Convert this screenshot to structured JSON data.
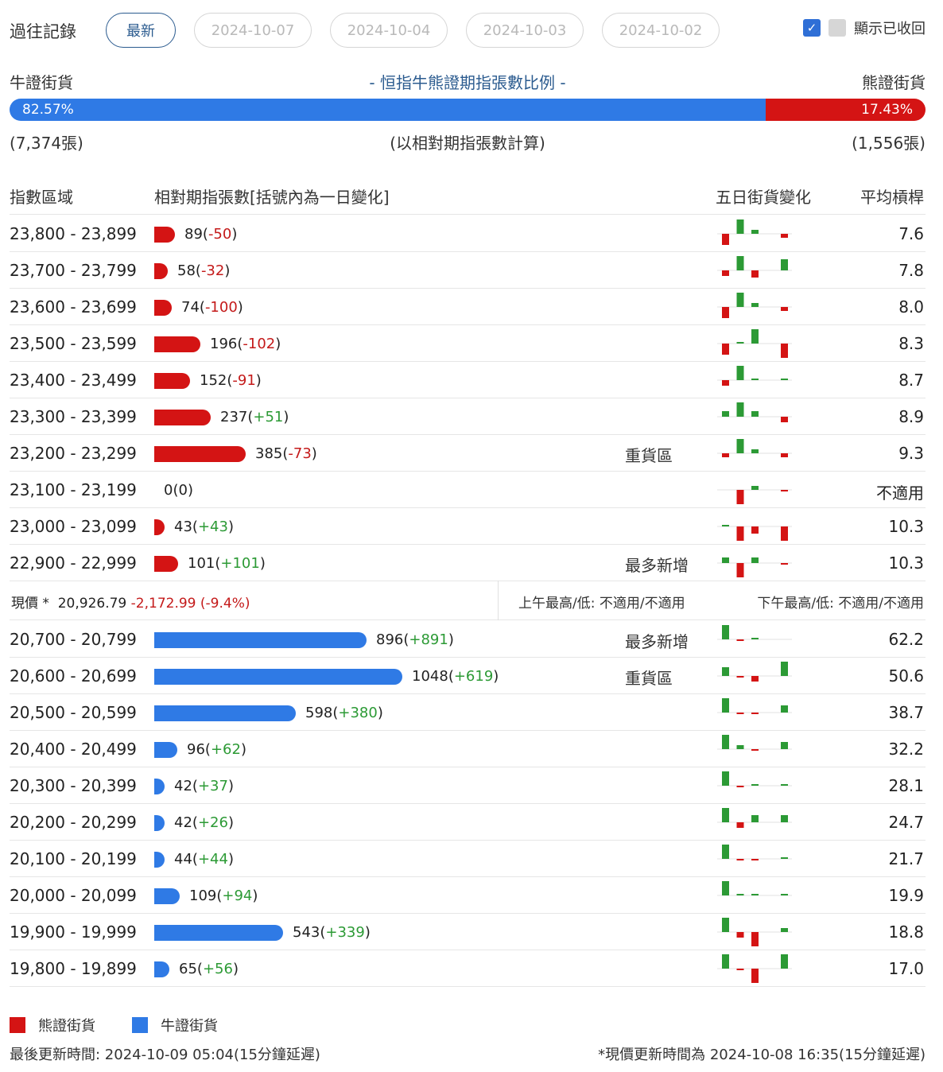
{
  "history": {
    "label": "過往記錄",
    "buttons": [
      "最新",
      "2024-10-07",
      "2024-10-04",
      "2024-10-03",
      "2024-10-02"
    ],
    "active_index": 0,
    "show_recalled_label": "顯示已收回",
    "check_icon": "✓"
  },
  "ratio": {
    "bull_label": "牛證街貨",
    "bear_label": "熊證街貨",
    "title": "- 恒指牛熊證期指張數比例 -",
    "bull_pct": "82.57%",
    "bear_pct": "17.43%",
    "bull_fraction": 0.8257,
    "bull_count": "(7,374張)",
    "bear_count": "(1,556張)",
    "note": "(以相對期指張數計算)"
  },
  "table": {
    "headers": {
      "range": "指數區域",
      "contracts": "相對期指張數[括號內為一日變化]",
      "five_day": "五日街貨變化",
      "leverage": "平均槓桿"
    },
    "max_contracts": 1048,
    "bear_rows": [
      {
        "range": "23,800 - 23,899",
        "count": "89",
        "change": "-50",
        "value": 89,
        "tag": "",
        "leverage": "7.6",
        "spark": [
          -3,
          4,
          1,
          0,
          -1
        ]
      },
      {
        "range": "23,700 - 23,799",
        "count": "58",
        "change": "-32",
        "value": 58,
        "tag": "",
        "leverage": "7.8",
        "spark": [
          -1.5,
          4,
          -2,
          0,
          3
        ]
      },
      {
        "range": "23,600 - 23,699",
        "count": "74",
        "change": "-100",
        "value": 74,
        "tag": "",
        "leverage": "8.0",
        "spark": [
          -3,
          4,
          1,
          0,
          -1
        ]
      },
      {
        "range": "23,500 - 23,599",
        "count": "196",
        "change": "-102",
        "value": 196,
        "tag": "",
        "leverage": "8.3",
        "spark": [
          -3,
          0.5,
          4,
          0,
          -4
        ]
      },
      {
        "range": "23,400 - 23,499",
        "count": "152",
        "change": "-91",
        "value": 152,
        "tag": "",
        "leverage": "8.7",
        "spark": [
          -1.5,
          4,
          0.5,
          0,
          0.5
        ]
      },
      {
        "range": "23,300 - 23,399",
        "count": "237",
        "change": "+51",
        "value": 237,
        "tag": "",
        "leverage": "8.9",
        "spark": [
          1.5,
          4,
          1.5,
          0,
          -1.5
        ]
      },
      {
        "range": "23,200 - 23,299",
        "count": "385",
        "change": "-73",
        "value": 385,
        "tag": "重貨區",
        "leverage": "9.3",
        "spark": [
          -1,
          4,
          1,
          0,
          -1
        ]
      },
      {
        "range": "23,100 - 23,199",
        "count": "0",
        "change": "0",
        "value": 0,
        "tag": "",
        "leverage": "不適用",
        "spark": [
          0,
          -4,
          1,
          0,
          -0.5
        ]
      },
      {
        "range": "23,000 - 23,099",
        "count": "43",
        "change": "+43",
        "value": 43,
        "tag": "",
        "leverage": "10.3",
        "spark": [
          0.5,
          -4,
          -2,
          0,
          -4
        ]
      },
      {
        "range": "22,900 - 22,999",
        "count": "101",
        "change": "+101",
        "value": 101,
        "tag": "最多新增",
        "leverage": "10.3",
        "spark": [
          1.5,
          -4,
          1.5,
          0,
          -0.5
        ]
      }
    ],
    "price": {
      "label": "現價 *",
      "value": "20,926.79",
      "change": "-2,172.99 (-9.4%)",
      "am": "上午最高/低: 不適用/不適用",
      "pm": "下午最高/低: 不適用/不適用"
    },
    "bull_rows": [
      {
        "range": "20,700 - 20,799",
        "count": "896",
        "change": "+891",
        "value": 896,
        "tag": "最多新增",
        "leverage": "62.2",
        "spark": [
          4,
          -0.5,
          0.5,
          0,
          0
        ]
      },
      {
        "range": "20,600 - 20,699",
        "count": "1048",
        "change": "+619",
        "value": 1048,
        "tag": "重貨區",
        "leverage": "50.6",
        "spark": [
          2.5,
          -0.5,
          -1.5,
          0,
          4
        ]
      },
      {
        "range": "20,500 - 20,599",
        "count": "598",
        "change": "+380",
        "value": 598,
        "tag": "",
        "leverage": "38.7",
        "spark": [
          4,
          -0.5,
          -0.5,
          0,
          2
        ]
      },
      {
        "range": "20,400 - 20,499",
        "count": "96",
        "change": "+62",
        "value": 96,
        "tag": "",
        "leverage": "32.2",
        "spark": [
          4,
          1,
          -0.5,
          0,
          2
        ]
      },
      {
        "range": "20,300 - 20,399",
        "count": "42",
        "change": "+37",
        "value": 42,
        "tag": "",
        "leverage": "28.1",
        "spark": [
          4,
          -0.5,
          0.5,
          0,
          0.5
        ]
      },
      {
        "range": "20,200 - 20,299",
        "count": "42",
        "change": "+26",
        "value": 42,
        "tag": "",
        "leverage": "24.7",
        "spark": [
          4,
          -1.5,
          2,
          0,
          2
        ]
      },
      {
        "range": "20,100 - 20,199",
        "count": "44",
        "change": "+44",
        "value": 44,
        "tag": "",
        "leverage": "21.7",
        "spark": [
          4,
          -0.5,
          -0.5,
          0,
          0.5
        ]
      },
      {
        "range": "20,000 - 20,099",
        "count": "109",
        "change": "+94",
        "value": 109,
        "tag": "",
        "leverage": "19.9",
        "spark": [
          4,
          0.5,
          0.5,
          0,
          0.5
        ]
      },
      {
        "range": "19,900 - 19,999",
        "count": "543",
        "change": "+339",
        "value": 543,
        "tag": "",
        "leverage": "18.8",
        "spark": [
          4,
          -1.5,
          -4,
          0,
          1
        ]
      },
      {
        "range": "19,800 - 19,899",
        "count": "65",
        "change": "+56",
        "value": 65,
        "tag": "",
        "leverage": "17.0",
        "spark": [
          4,
          -0.5,
          -4,
          0,
          4
        ]
      }
    ]
  },
  "legend": {
    "bear": "熊證街貨",
    "bull": "牛證街貨"
  },
  "footer": {
    "updated": "最後更新時間: 2024-10-09 05:04(15分鐘延遲)",
    "price_updated": "*現價更新時間為 2024-10-08 16:35(15分鐘延遲)"
  },
  "colors": {
    "bear": "#d41414",
    "bull": "#2f7ae5",
    "pos": "#2c9a35",
    "neg": "#c41a1a"
  }
}
